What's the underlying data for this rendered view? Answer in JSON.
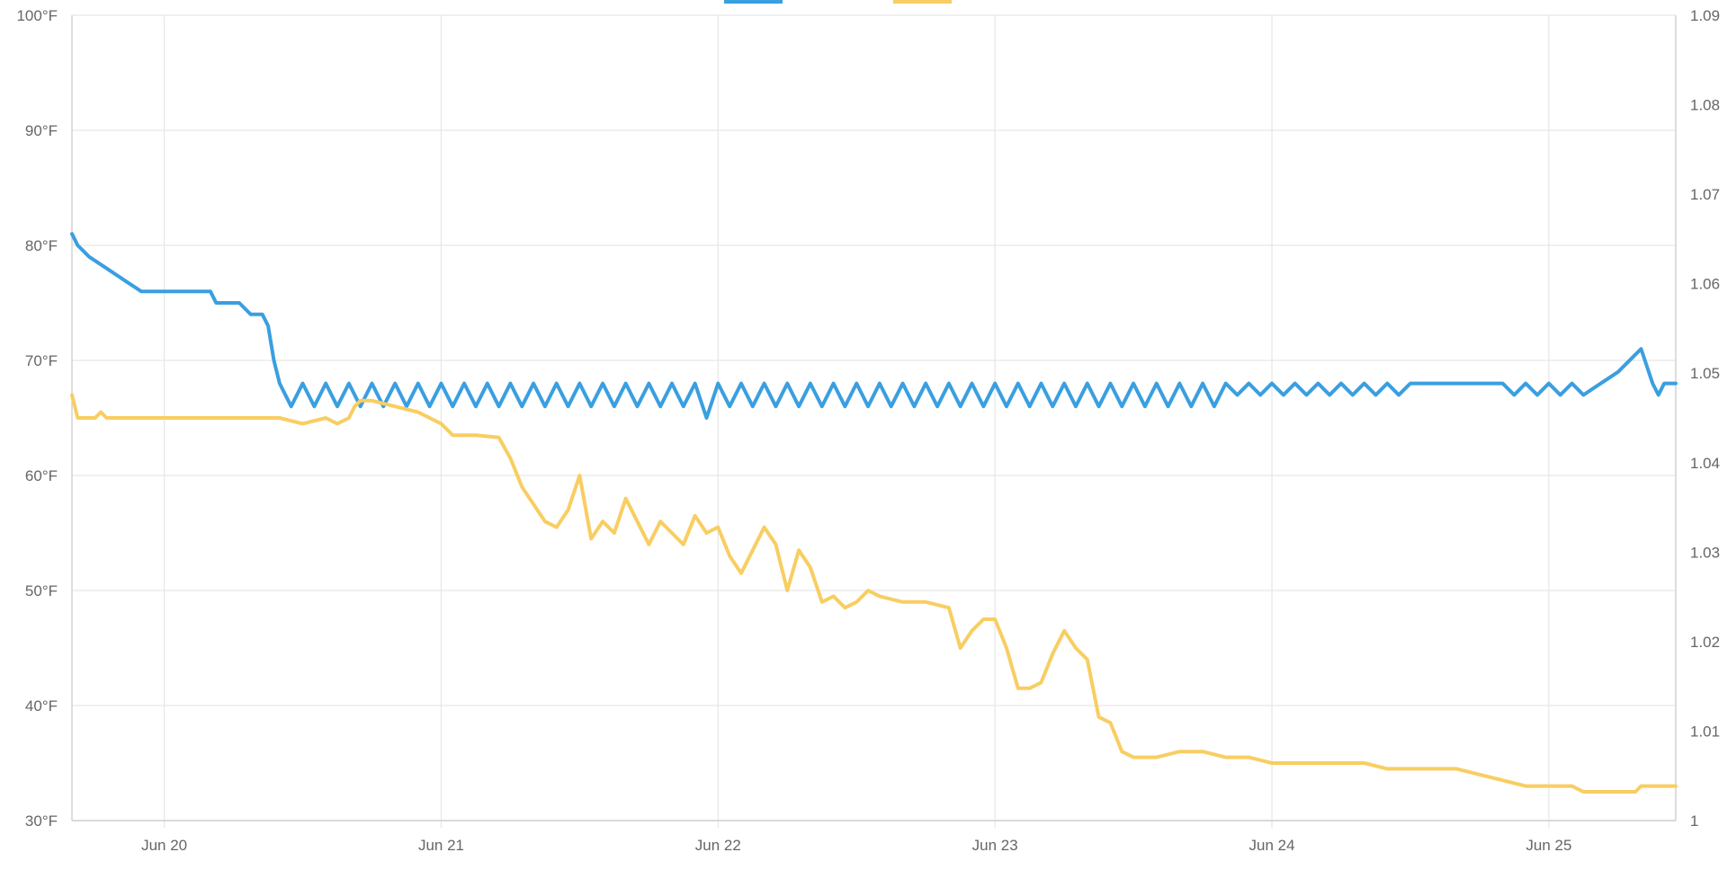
{
  "chart_data": {
    "type": "line",
    "legend": {
      "placement": "top-center",
      "entries_visible": "partially cropped"
    },
    "grid": true,
    "x_axis": {
      "type": "date",
      "range": [
        "2022-06-19T16:00",
        "2022-06-25T11:00"
      ],
      "ticks": [
        {
          "value": "2022-06-20T00:00",
          "label": "Jun 20"
        },
        {
          "value": "2022-06-21T00:00",
          "label": "Jun 21"
        },
        {
          "value": "2022-06-22T00:00",
          "label": "Jun 22"
        },
        {
          "value": "2022-06-23T00:00",
          "label": "Jun 23"
        },
        {
          "value": "2022-06-24T00:00",
          "label": "Jun 24"
        },
        {
          "value": "2022-06-25T00:00",
          "label": "Jun 25"
        }
      ]
    },
    "y_left": {
      "range": [
        30,
        100
      ],
      "ticks": [
        {
          "value": 30,
          "label": "30°F"
        },
        {
          "value": 40,
          "label": "40°F"
        },
        {
          "value": 50,
          "label": "50°F"
        },
        {
          "value": 60,
          "label": "60°F"
        },
        {
          "value": 70,
          "label": "70°F"
        },
        {
          "value": 80,
          "label": "80°F"
        },
        {
          "value": 90,
          "label": "90°F"
        },
        {
          "value": 100,
          "label": "100°F"
        }
      ]
    },
    "y_right": {
      "range": [
        1.0,
        1.09
      ],
      "ticks": [
        {
          "value": 1.0,
          "label": "1"
        },
        {
          "value": 1.01,
          "label": "1.01"
        },
        {
          "value": 1.02,
          "label": "1.02"
        },
        {
          "value": 1.03,
          "label": "1.03"
        },
        {
          "value": 1.04,
          "label": "1.04"
        },
        {
          "value": 1.05,
          "label": "1.05"
        },
        {
          "value": 1.06,
          "label": "1.06"
        },
        {
          "value": 1.07,
          "label": "1.07"
        },
        {
          "value": 1.08,
          "label": "1.08"
        },
        {
          "value": 1.09,
          "label": "1.09"
        }
      ]
    },
    "series": [
      {
        "axis": "left",
        "color": "#3a9fe0",
        "points": [
          [
            "2022-06-19T16:00",
            81
          ],
          [
            "2022-06-19T16:30",
            80
          ],
          [
            "2022-06-19T17:30",
            79
          ],
          [
            "2022-06-19T19:00",
            78
          ],
          [
            "2022-06-19T20:30",
            77
          ],
          [
            "2022-06-19T22:00",
            76
          ],
          [
            "2022-06-20T00:00",
            76
          ],
          [
            "2022-06-20T04:00",
            76
          ],
          [
            "2022-06-20T04:30",
            75
          ],
          [
            "2022-06-20T06:30",
            75
          ],
          [
            "2022-06-20T07:30",
            74
          ],
          [
            "2022-06-20T08:30",
            74
          ],
          [
            "2022-06-20T09:00",
            73
          ],
          [
            "2022-06-20T09:30",
            70
          ],
          [
            "2022-06-20T10:00",
            68
          ],
          [
            "2022-06-20T11:00",
            66
          ],
          [
            "2022-06-20T12:00",
            68
          ],
          [
            "2022-06-20T13:00",
            66
          ],
          [
            "2022-06-20T14:00",
            68
          ],
          [
            "2022-06-20T15:00",
            66
          ],
          [
            "2022-06-20T16:00",
            68
          ],
          [
            "2022-06-20T17:00",
            66
          ],
          [
            "2022-06-20T18:00",
            68
          ],
          [
            "2022-06-20T19:00",
            66
          ],
          [
            "2022-06-20T20:00",
            68
          ],
          [
            "2022-06-20T21:00",
            66
          ],
          [
            "2022-06-20T22:00",
            68
          ],
          [
            "2022-06-20T23:00",
            66
          ],
          [
            "2022-06-21T00:00",
            68
          ],
          [
            "2022-06-21T01:00",
            66
          ],
          [
            "2022-06-21T02:00",
            68
          ],
          [
            "2022-06-21T03:00",
            66
          ],
          [
            "2022-06-21T04:00",
            68
          ],
          [
            "2022-06-21T05:00",
            66
          ],
          [
            "2022-06-21T06:00",
            68
          ],
          [
            "2022-06-21T07:00",
            66
          ],
          [
            "2022-06-21T08:00",
            68
          ],
          [
            "2022-06-21T09:00",
            66
          ],
          [
            "2022-06-21T10:00",
            68
          ],
          [
            "2022-06-21T11:00",
            66
          ],
          [
            "2022-06-21T12:00",
            68
          ],
          [
            "2022-06-21T13:00",
            66
          ],
          [
            "2022-06-21T14:00",
            68
          ],
          [
            "2022-06-21T15:00",
            66
          ],
          [
            "2022-06-21T16:00",
            68
          ],
          [
            "2022-06-21T17:00",
            66
          ],
          [
            "2022-06-21T18:00",
            68
          ],
          [
            "2022-06-21T19:00",
            66
          ],
          [
            "2022-06-21T20:00",
            68
          ],
          [
            "2022-06-21T21:00",
            66
          ],
          [
            "2022-06-21T22:00",
            68
          ],
          [
            "2022-06-21T23:00",
            65
          ],
          [
            "2022-06-22T00:00",
            68
          ],
          [
            "2022-06-22T01:00",
            66
          ],
          [
            "2022-06-22T02:00",
            68
          ],
          [
            "2022-06-22T03:00",
            66
          ],
          [
            "2022-06-22T04:00",
            68
          ],
          [
            "2022-06-22T05:00",
            66
          ],
          [
            "2022-06-22T06:00",
            68
          ],
          [
            "2022-06-22T07:00",
            66
          ],
          [
            "2022-06-22T08:00",
            68
          ],
          [
            "2022-06-22T09:00",
            66
          ],
          [
            "2022-06-22T10:00",
            68
          ],
          [
            "2022-06-22T11:00",
            66
          ],
          [
            "2022-06-22T12:00",
            68
          ],
          [
            "2022-06-22T13:00",
            66
          ],
          [
            "2022-06-22T14:00",
            68
          ],
          [
            "2022-06-22T15:00",
            66
          ],
          [
            "2022-06-22T16:00",
            68
          ],
          [
            "2022-06-22T17:00",
            66
          ],
          [
            "2022-06-22T18:00",
            68
          ],
          [
            "2022-06-22T19:00",
            66
          ],
          [
            "2022-06-22T20:00",
            68
          ],
          [
            "2022-06-22T21:00",
            66
          ],
          [
            "2022-06-22T22:00",
            68
          ],
          [
            "2022-06-22T23:00",
            66
          ],
          [
            "2022-06-23T00:00",
            68
          ],
          [
            "2022-06-23T01:00",
            66
          ],
          [
            "2022-06-23T02:00",
            68
          ],
          [
            "2022-06-23T03:00",
            66
          ],
          [
            "2022-06-23T04:00",
            68
          ],
          [
            "2022-06-23T05:00",
            66
          ],
          [
            "2022-06-23T06:00",
            68
          ],
          [
            "2022-06-23T07:00",
            66
          ],
          [
            "2022-06-23T08:00",
            68
          ],
          [
            "2022-06-23T09:00",
            66
          ],
          [
            "2022-06-23T10:00",
            68
          ],
          [
            "2022-06-23T11:00",
            66
          ],
          [
            "2022-06-23T12:00",
            68
          ],
          [
            "2022-06-23T13:00",
            66
          ],
          [
            "2022-06-23T14:00",
            68
          ],
          [
            "2022-06-23T15:00",
            66
          ],
          [
            "2022-06-23T16:00",
            68
          ],
          [
            "2022-06-23T17:00",
            66
          ],
          [
            "2022-06-23T18:00",
            68
          ],
          [
            "2022-06-23T19:00",
            66
          ],
          [
            "2022-06-23T20:00",
            68
          ],
          [
            "2022-06-23T21:00",
            67
          ],
          [
            "2022-06-23T22:00",
            68
          ],
          [
            "2022-06-23T23:00",
            67
          ],
          [
            "2022-06-24T00:00",
            68
          ],
          [
            "2022-06-24T01:00",
            67
          ],
          [
            "2022-06-24T02:00",
            68
          ],
          [
            "2022-06-24T03:00",
            67
          ],
          [
            "2022-06-24T04:00",
            68
          ],
          [
            "2022-06-24T05:00",
            67
          ],
          [
            "2022-06-24T06:00",
            68
          ],
          [
            "2022-06-24T07:00",
            67
          ],
          [
            "2022-06-24T08:00",
            68
          ],
          [
            "2022-06-24T09:00",
            67
          ],
          [
            "2022-06-24T10:00",
            68
          ],
          [
            "2022-06-24T11:00",
            67
          ],
          [
            "2022-06-24T12:00",
            68
          ],
          [
            "2022-06-24T20:00",
            68
          ],
          [
            "2022-06-24T21:00",
            67
          ],
          [
            "2022-06-24T22:00",
            68
          ],
          [
            "2022-06-24T23:00",
            67
          ],
          [
            "2022-06-25T00:00",
            68
          ],
          [
            "2022-06-25T01:00",
            67
          ],
          [
            "2022-06-25T02:00",
            68
          ],
          [
            "2022-06-25T03:00",
            67
          ],
          [
            "2022-06-25T06:00",
            69
          ],
          [
            "2022-06-25T08:00",
            71
          ],
          [
            "2022-06-25T09:00",
            68
          ],
          [
            "2022-06-25T09:30",
            67
          ],
          [
            "2022-06-25T10:00",
            68
          ],
          [
            "2022-06-25T11:00",
            68
          ]
        ]
      },
      {
        "axis": "left",
        "color": "#f8ce62",
        "points": [
          [
            "2022-06-19T16:00",
            67
          ],
          [
            "2022-06-19T16:30",
            65
          ],
          [
            "2022-06-19T18:00",
            65
          ],
          [
            "2022-06-19T18:30",
            65.5
          ],
          [
            "2022-06-19T19:00",
            65
          ],
          [
            "2022-06-19T23:00",
            65
          ],
          [
            "2022-06-20T04:00",
            65
          ],
          [
            "2022-06-20T08:00",
            65
          ],
          [
            "2022-06-20T10:00",
            65
          ],
          [
            "2022-06-20T12:00",
            64.5
          ],
          [
            "2022-06-20T14:00",
            65
          ],
          [
            "2022-06-20T15:00",
            64.5
          ],
          [
            "2022-06-20T16:00",
            65
          ],
          [
            "2022-06-20T16:30",
            66
          ],
          [
            "2022-06-20T17:00",
            66.5
          ],
          [
            "2022-06-20T18:00",
            66.5
          ],
          [
            "2022-06-20T20:00",
            66
          ],
          [
            "2022-06-20T22:00",
            65.5
          ],
          [
            "2022-06-21T00:00",
            64.5
          ],
          [
            "2022-06-21T01:00",
            63.5
          ],
          [
            "2022-06-21T03:00",
            63.5
          ],
          [
            "2022-06-21T05:00",
            63.3
          ],
          [
            "2022-06-21T06:00",
            61.5
          ],
          [
            "2022-06-21T07:00",
            59
          ],
          [
            "2022-06-21T08:00",
            57.5
          ],
          [
            "2022-06-21T09:00",
            56
          ],
          [
            "2022-06-21T10:00",
            55.5
          ],
          [
            "2022-06-21T11:00",
            57
          ],
          [
            "2022-06-21T12:00",
            60
          ],
          [
            "2022-06-21T13:00",
            54.5
          ],
          [
            "2022-06-21T14:00",
            56
          ],
          [
            "2022-06-21T15:00",
            55
          ],
          [
            "2022-06-21T16:00",
            58
          ],
          [
            "2022-06-21T17:00",
            56
          ],
          [
            "2022-06-21T18:00",
            54
          ],
          [
            "2022-06-21T19:00",
            56
          ],
          [
            "2022-06-21T20:00",
            55
          ],
          [
            "2022-06-21T21:00",
            54
          ],
          [
            "2022-06-21T22:00",
            56.5
          ],
          [
            "2022-06-21T23:00",
            55
          ],
          [
            "2022-06-22T00:00",
            55.5
          ],
          [
            "2022-06-22T01:00",
            53
          ],
          [
            "2022-06-22T02:00",
            51.5
          ],
          [
            "2022-06-22T03:00",
            53.5
          ],
          [
            "2022-06-22T04:00",
            55.5
          ],
          [
            "2022-06-22T05:00",
            54
          ],
          [
            "2022-06-22T06:00",
            50
          ],
          [
            "2022-06-22T07:00",
            53.5
          ],
          [
            "2022-06-22T08:00",
            52
          ],
          [
            "2022-06-22T09:00",
            49
          ],
          [
            "2022-06-22T10:00",
            49.5
          ],
          [
            "2022-06-22T11:00",
            48.5
          ],
          [
            "2022-06-22T12:00",
            49
          ],
          [
            "2022-06-22T13:00",
            50
          ],
          [
            "2022-06-22T14:00",
            49.5
          ],
          [
            "2022-06-22T16:00",
            49
          ],
          [
            "2022-06-22T18:00",
            49
          ],
          [
            "2022-06-22T20:00",
            48.5
          ],
          [
            "2022-06-22T21:00",
            45
          ],
          [
            "2022-06-22T22:00",
            46.5
          ],
          [
            "2022-06-22T23:00",
            47.5
          ],
          [
            "2022-06-23T00:00",
            47.5
          ],
          [
            "2022-06-23T01:00",
            45
          ],
          [
            "2022-06-23T02:00",
            41.5
          ],
          [
            "2022-06-23T03:00",
            41.5
          ],
          [
            "2022-06-23T04:00",
            42
          ],
          [
            "2022-06-23T05:00",
            44.5
          ],
          [
            "2022-06-23T06:00",
            46.5
          ],
          [
            "2022-06-23T07:00",
            45
          ],
          [
            "2022-06-23T08:00",
            44
          ],
          [
            "2022-06-23T09:00",
            39
          ],
          [
            "2022-06-23T10:00",
            38.5
          ],
          [
            "2022-06-23T11:00",
            36
          ],
          [
            "2022-06-23T12:00",
            35.5
          ],
          [
            "2022-06-23T14:00",
            35.5
          ],
          [
            "2022-06-23T16:00",
            36
          ],
          [
            "2022-06-23T18:00",
            36
          ],
          [
            "2022-06-23T20:00",
            35.5
          ],
          [
            "2022-06-23T22:00",
            35.5
          ],
          [
            "2022-06-24T00:00",
            35
          ],
          [
            "2022-06-24T04:00",
            35
          ],
          [
            "2022-06-24T08:00",
            35
          ],
          [
            "2022-06-24T10:00",
            34.5
          ],
          [
            "2022-06-24T12:00",
            34.5
          ],
          [
            "2022-06-24T16:00",
            34.5
          ],
          [
            "2022-06-24T18:00",
            34
          ],
          [
            "2022-06-24T20:00",
            33.5
          ],
          [
            "2022-06-24T22:00",
            33
          ],
          [
            "2022-06-25T00:00",
            33
          ],
          [
            "2022-06-25T02:00",
            33
          ],
          [
            "2022-06-25T03:00",
            32.5
          ],
          [
            "2022-06-25T06:00",
            32.5
          ],
          [
            "2022-06-25T07:30",
            32.5
          ],
          [
            "2022-06-25T08:00",
            33
          ],
          [
            "2022-06-25T11:00",
            33
          ]
        ]
      }
    ]
  }
}
